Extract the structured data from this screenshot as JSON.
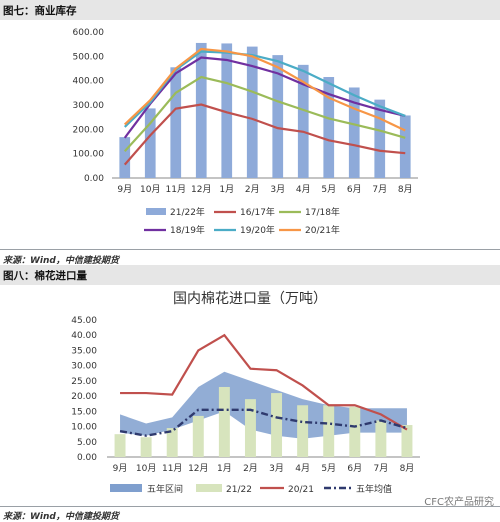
{
  "chart_data": [
    {
      "type": "bar",
      "figure_label": "图七：商业库存",
      "title": "",
      "source": "来源：Wind，中信建投期货",
      "categories": [
        "9月",
        "10月",
        "11月",
        "12月",
        "1月",
        "2月",
        "3月",
        "4月",
        "5月",
        "6月",
        "7月",
        "8月"
      ],
      "ylim": [
        0,
        600
      ],
      "yticks": [
        "0.00",
        "100.00",
        "200.00",
        "300.00",
        "400.00",
        "500.00",
        "600.00"
      ],
      "legend_position": "bottom",
      "colors": {
        "21/22年": "#8eaad9",
        "16/17年": "#c0504d",
        "17/18年": "#9bbb59",
        "18/19年": "#7030a0",
        "19/20年": "#4bacc6",
        "20/21年": "#f79646"
      },
      "series": [
        {
          "name": "21/22年",
          "kind": "bar",
          "values": [
            168,
            286,
            455,
            555,
            553,
            540,
            505,
            465,
            415,
            372,
            322,
            257
          ]
        },
        {
          "name": "16/17年",
          "kind": "line",
          "values": [
            55,
            175,
            285,
            302,
            270,
            243,
            205,
            190,
            155,
            135,
            112,
            102
          ]
        },
        {
          "name": "17/18年",
          "kind": "line",
          "values": [
            110,
            225,
            350,
            415,
            390,
            355,
            315,
            280,
            245,
            220,
            195,
            165
          ]
        },
        {
          "name": "18/19年",
          "kind": "line",
          "values": [
            165,
            305,
            430,
            495,
            485,
            460,
            430,
            385,
            345,
            310,
            280,
            255
          ]
        },
        {
          "name": "19/20年",
          "kind": "line",
          "values": [
            210,
            310,
            445,
            520,
            515,
            505,
            480,
            440,
            390,
            340,
            295,
            255
          ]
        },
        {
          "name": "20/21年",
          "kind": "line",
          "values": [
            220,
            320,
            450,
            530,
            520,
            500,
            455,
            395,
            330,
            285,
            245,
            195
          ]
        }
      ]
    },
    {
      "type": "bar",
      "figure_label": "图八：棉花进口量",
      "title": "国内棉花进口量（万吨）",
      "source": "来源：Wind，中信建投期货",
      "categories": [
        "9月",
        "10月",
        "11月",
        "12月",
        "1月",
        "2月",
        "3月",
        "4月",
        "5月",
        "6月",
        "7月",
        "8月"
      ],
      "ylim": [
        0,
        45
      ],
      "yticks": [
        "0.00",
        "5.00",
        "10.00",
        "15.00",
        "20.00",
        "25.00",
        "30.00",
        "35.00",
        "40.00",
        "45.00"
      ],
      "legend_position": "bottom",
      "colors": {
        "五年区间": "#7f9fce",
        "21/22": "#d7e4bd",
        "20/21": "#c0504d",
        "五年均值": "#2f3a6e"
      },
      "series": [
        {
          "name": "五年区间",
          "kind": "band",
          "low": [
            8,
            7,
            9,
            12,
            15,
            9,
            7,
            6,
            7,
            8,
            8,
            8
          ],
          "high": [
            14,
            11,
            13,
            23,
            28,
            25,
            22,
            19,
            17,
            16,
            16,
            16
          ]
        },
        {
          "name": "21/22",
          "kind": "bar",
          "values": [
            7.5,
            6.5,
            9.5,
            13.5,
            23,
            19,
            21,
            17,
            17,
            16.5,
            12,
            10.5
          ]
        },
        {
          "name": "20/21",
          "kind": "line",
          "values": [
            21,
            21,
            20.5,
            35,
            40,
            29,
            28.5,
            23.5,
            17,
            17,
            14,
            9
          ]
        },
        {
          "name": "五年均值",
          "kind": "dashline",
          "values": [
            8.5,
            7,
            8.5,
            15.5,
            15.5,
            15.5,
            13,
            11.5,
            11,
            10,
            12,
            9.5
          ]
        }
      ]
    }
  ],
  "watermark": "CFC农产品研究"
}
